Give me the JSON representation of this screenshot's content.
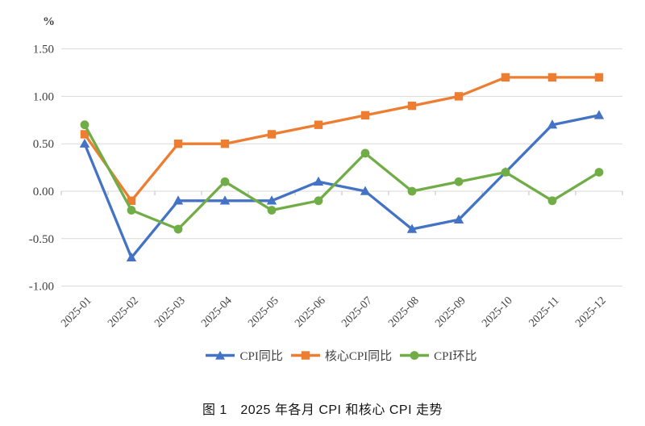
{
  "chart_data": {
    "type": "line",
    "unit_label": "%",
    "categories": [
      "2025-01",
      "2025-02",
      "2025-03",
      "2025-04",
      "2025-05",
      "2025-06",
      "2025-07",
      "2025-08",
      "2025-09",
      "2025-10",
      "2025-11",
      "2025-12"
    ],
    "series": [
      {
        "name": "CPI同比",
        "color": "#4472C4",
        "marker": "triangle",
        "values": [
          0.5,
          -0.7,
          -0.1,
          -0.1,
          -0.1,
          0.1,
          0.0,
          -0.4,
          -0.3,
          0.2,
          0.7,
          0.8
        ]
      },
      {
        "name": "核心CPI同比",
        "color": "#ED7D31",
        "marker": "square",
        "values": [
          0.6,
          -0.1,
          0.5,
          0.5,
          0.6,
          0.7,
          0.8,
          0.9,
          1.0,
          1.2,
          1.2,
          1.2
        ]
      },
      {
        "name": "CPI环比",
        "color": "#70AD47",
        "marker": "circle",
        "values": [
          0.7,
          -0.2,
          -0.4,
          0.1,
          -0.2,
          -0.1,
          0.4,
          0.0,
          0.1,
          0.2,
          -0.1,
          0.2
        ]
      }
    ],
    "ylim": [
      -1.0,
      1.5
    ],
    "y_ticks": [
      1.5,
      1.0,
      0.5,
      0.0,
      -0.5,
      -1.0
    ],
    "y_tick_labels": [
      "1.50",
      "1.00",
      "0.50",
      "0.00",
      "-0.50",
      "-1.00"
    ],
    "grid": true,
    "legend_position": "bottom"
  },
  "caption": "图 1　2025 年各月 CPI 和核心 CPI 走势",
  "colors": {
    "gridline": "#D9D9D9",
    "tick": "#BFBFBF",
    "axis_text": "#404040"
  }
}
